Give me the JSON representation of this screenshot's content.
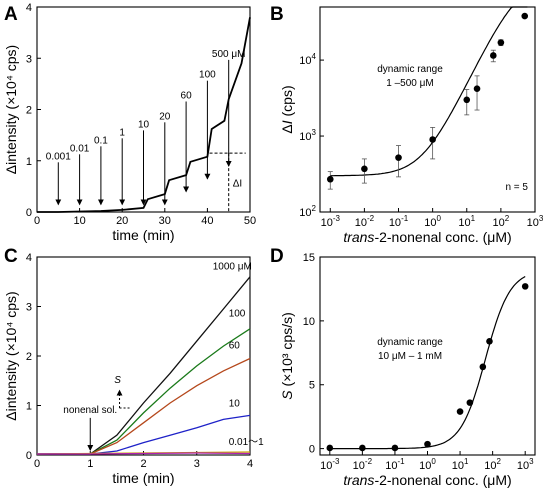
{
  "chart_data": [
    {
      "panel": "A",
      "type": "line",
      "xlabel": "time (min)",
      "ylabel": "Δintensity (×10⁴ cps)",
      "xlim": [
        0,
        50
      ],
      "ylim": [
        0,
        4
      ],
      "xticks": [
        "0",
        "10",
        "20",
        "30",
        "40",
        "50"
      ],
      "yticks": [
        "0",
        "1",
        "2",
        "3",
        "4"
      ],
      "series": [
        {
          "x": [
            0,
            5,
            10,
            15,
            20,
            25,
            26,
            30,
            31,
            35,
            36,
            40,
            41,
            44,
            45,
            48,
            50
          ],
          "y": [
            0,
            0,
            0.01,
            0.02,
            0.04,
            0.08,
            0.25,
            0.35,
            0.62,
            0.72,
            0.98,
            1.08,
            1.62,
            1.78,
            2.2,
            2.9,
            3.8
          ]
        }
      ],
      "injections": [
        {
          "label": "0.001",
          "x": 5
        },
        {
          "label": "0.01",
          "x": 10
        },
        {
          "label": "0.1",
          "x": 15
        },
        {
          "label": "1",
          "x": 20
        },
        {
          "label": "10",
          "x": 25
        },
        {
          "label": "20",
          "x": 30
        },
        {
          "label": "60",
          "x": 35
        },
        {
          "label": "100",
          "x": 40
        },
        {
          "label": "500 μM",
          "x": 45
        }
      ],
      "delta_label": "ΔI",
      "delta_level": 1.15
    },
    {
      "panel": "B",
      "type": "scatter",
      "xlabel_pre": "trans",
      "xlabel_post": "-2-nonenal conc. (μM)",
      "ylabel_pre": "Δ",
      "ylabel_ital": "I",
      "ylabel_post": " (cps)",
      "xscale": "log",
      "yscale": "log",
      "xlim": [
        0.0005,
        1000
      ],
      "ylim": [
        100,
        50000
      ],
      "xticks": [
        0.001,
        0.01,
        0.1,
        1,
        10,
        100,
        1000
      ],
      "yticks": [
        100,
        1000,
        10000
      ],
      "points": {
        "x": [
          0.001,
          0.01,
          0.1,
          1,
          10,
          20,
          60,
          100,
          500
        ],
        "y": [
          270,
          370,
          520,
          900,
          3000,
          4200,
          11500,
          17000,
          38000
        ],
        "err": [
          70,
          130,
          230,
          400,
          1100,
          2000,
          2000,
          1500,
          0
        ]
      },
      "fit": {
        "bottom": 300,
        "top": 120000,
        "ec50": 300,
        "hill": 0.95
      },
      "annotation": [
        "dynamic range",
        "1 –500 μM"
      ],
      "n_label": "n = 5"
    },
    {
      "panel": "C",
      "type": "line",
      "xlabel": "time (min)",
      "ylabel": "Δintensity (×10⁴ cps)",
      "xlim": [
        0,
        4
      ],
      "ylim": [
        0,
        4
      ],
      "xticks": [
        "0",
        "1",
        "2",
        "3",
        "4"
      ],
      "yticks": [
        "0",
        "1",
        "2",
        "3",
        "4"
      ],
      "series": [
        {
          "name": "1000 μM",
          "color": "#111111",
          "x": [
            0,
            1,
            1.5,
            2,
            2.5,
            3,
            3.5,
            4
          ],
          "y": [
            0.02,
            0.02,
            0.4,
            1.05,
            1.65,
            2.3,
            2.95,
            3.6
          ]
        },
        {
          "name": "100",
          "color": "#1a7a1a",
          "x": [
            0,
            1,
            1.5,
            2,
            2.5,
            3,
            3.5,
            4
          ],
          "y": [
            0.02,
            0.02,
            0.3,
            0.85,
            1.35,
            1.8,
            2.2,
            2.55
          ]
        },
        {
          "name": "60",
          "color": "#b5481c",
          "x": [
            0,
            1,
            1.5,
            2,
            2.5,
            3,
            3.5,
            4
          ],
          "y": [
            0.02,
            0.02,
            0.25,
            0.65,
            1.05,
            1.4,
            1.7,
            1.95
          ]
        },
        {
          "name": "10",
          "color": "#1e22c8",
          "x": [
            0,
            1,
            1.5,
            2,
            2.5,
            3,
            3.5,
            4
          ],
          "y": [
            0.02,
            0.02,
            0.08,
            0.25,
            0.4,
            0.55,
            0.72,
            0.8
          ]
        },
        {
          "name": "0.01～1",
          "color": "#c9a400",
          "x": [
            0,
            1,
            2,
            3,
            4
          ],
          "y": [
            0.02,
            0.03,
            0.04,
            0.05,
            0.06
          ]
        },
        {
          "name": "",
          "color": "#b020b0",
          "x": [
            0,
            1,
            2,
            3,
            4
          ],
          "y": [
            0.02,
            0.02,
            0.03,
            0.04,
            0.03
          ]
        }
      ],
      "injection_label": "nonenal sol.",
      "injection_x": 1,
      "slope_label": "S"
    },
    {
      "panel": "D",
      "type": "scatter",
      "xlabel_pre": "trans",
      "xlabel_post": "-2-nonenal conc. (μM)",
      "ylabel_ital": "S",
      "ylabel_post": " (×10³ cps/s)",
      "xscale": "log",
      "xlim": [
        0.0005,
        2000
      ],
      "ylim": [
        -0.5,
        15
      ],
      "xticks": [
        0.001,
        0.01,
        0.1,
        1,
        10,
        100,
        1000
      ],
      "yticks": [
        0,
        5,
        10,
        15
      ],
      "points": {
        "x": [
          0.001,
          0.01,
          0.1,
          1,
          10,
          20,
          50,
          80,
          1000
        ],
        "y": [
          0.05,
          0.05,
          0.05,
          0.35,
          2.9,
          3.6,
          6.4,
          8.4,
          12.7
        ]
      },
      "fit": {
        "bottom": 0,
        "top": 14,
        "ec50": 60,
        "hill": 1.15
      },
      "annotation": [
        "dynamic range",
        "10 μM – 1 mM"
      ]
    }
  ]
}
